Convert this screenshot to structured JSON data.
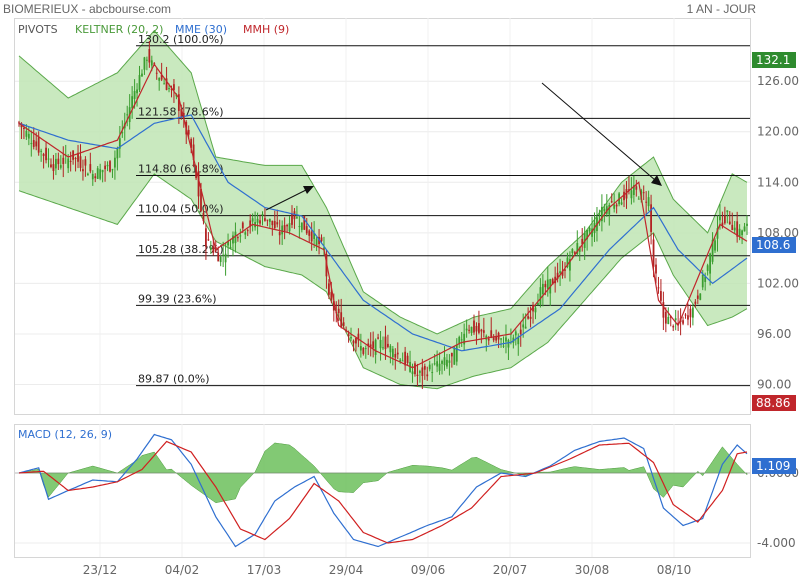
{
  "header": {
    "title": "BIOMERIEUX - abcbourse.com",
    "period": "1 AN - JOUR"
  },
  "legend": {
    "pivots": "PIVOTS",
    "keltner": "KELTNER (20, 2)",
    "mme": "MME (30)",
    "mmh": "MMH (9)",
    "macd": "MACD (12, 26, 9)"
  },
  "colors": {
    "keltner": "#5aa84a",
    "keltner_fill": "#bfe5b4",
    "mme": "#2f6fd0",
    "mmh": "#c0262b",
    "up": "#3a9d2f",
    "down": "#b22222",
    "macd_line": "#2f6fd0",
    "signal_line": "#d02020",
    "histogram": "#6cbf5c",
    "badge_high": "#2e8b2e",
    "badge_price": "#2f6fd0",
    "badge_low": "#c0262b"
  },
  "chart_data": {
    "type": "candlestick",
    "x_ticks": [
      "23/12",
      "04/02",
      "17/03",
      "29/04",
      "09/06",
      "20/07",
      "30/08",
      "08/10"
    ],
    "y_ticks": [
      90,
      96,
      102,
      108,
      114,
      120,
      126
    ],
    "y_tick_labels": [
      "90.00",
      "96.00",
      "102.00",
      "108.00",
      "114.00",
      "120.00",
      "126.00"
    ],
    "ylim": [
      86.5,
      133.5
    ],
    "fibonacci": [
      {
        "value": 130.2,
        "label": "130.2",
        "pct": "(100.0%)"
      },
      {
        "value": 121.58,
        "label": "121.58",
        "pct": "(78.6%)"
      },
      {
        "value": 114.8,
        "label": "114.80",
        "pct": "(61.8%)"
      },
      {
        "value": 110.04,
        "label": "110.04",
        "pct": "(50.0%)"
      },
      {
        "value": 105.28,
        "label": "105.28",
        "pct": "(38.2%)"
      },
      {
        "value": 99.39,
        "label": "99.39",
        "pct": "(23.6%)"
      },
      {
        "value": 89.87,
        "label": "89.87",
        "pct": "(0.0%)"
      }
    ],
    "badges": {
      "high": {
        "value": 132.1,
        "label": "132.1"
      },
      "price": {
        "value": 108.6,
        "label": "108.6"
      },
      "low": {
        "value": 88.86,
        "label": "88.86"
      }
    },
    "close_anchors": [
      [
        0,
        121
      ],
      [
        8,
        118
      ],
      [
        14,
        116
      ],
      [
        22,
        117
      ],
      [
        30,
        115
      ],
      [
        38,
        116
      ],
      [
        46,
        124
      ],
      [
        52,
        129
      ],
      [
        56,
        127
      ],
      [
        64,
        124
      ],
      [
        70,
        118
      ],
      [
        76,
        107
      ],
      [
        82,
        105
      ],
      [
        88,
        108
      ],
      [
        94,
        109
      ],
      [
        100,
        110
      ],
      [
        106,
        108
      ],
      [
        112,
        110
      ],
      [
        118,
        108
      ],
      [
        124,
        106
      ],
      [
        126,
        100
      ],
      [
        132,
        97
      ],
      [
        140,
        94
      ],
      [
        148,
        95
      ],
      [
        156,
        93
      ],
      [
        162,
        91
      ],
      [
        168,
        92
      ],
      [
        176,
        93
      ],
      [
        182,
        97
      ],
      [
        188,
        96
      ],
      [
        196,
        95
      ],
      [
        204,
        96
      ],
      [
        212,
        101
      ],
      [
        220,
        103
      ],
      [
        226,
        106
      ],
      [
        232,
        108
      ],
      [
        238,
        111
      ],
      [
        244,
        112
      ],
      [
        250,
        113
      ],
      [
        256,
        112
      ],
      [
        258,
        104
      ],
      [
        262,
        98
      ],
      [
        268,
        97
      ],
      [
        274,
        99
      ],
      [
        280,
        104
      ],
      [
        284,
        109
      ],
      [
        288,
        110
      ],
      [
        292,
        108
      ],
      [
        296,
        108.6
      ]
    ],
    "keltner_upper_anchors": [
      [
        0,
        129
      ],
      [
        20,
        124
      ],
      [
        40,
        127
      ],
      [
        55,
        132
      ],
      [
        70,
        127
      ],
      [
        80,
        117
      ],
      [
        100,
        116
      ],
      [
        115,
        116
      ],
      [
        125,
        111
      ],
      [
        140,
        101
      ],
      [
        155,
        98
      ],
      [
        170,
        96
      ],
      [
        185,
        98
      ],
      [
        200,
        99
      ],
      [
        215,
        104
      ],
      [
        230,
        108
      ],
      [
        245,
        114
      ],
      [
        258,
        117
      ],
      [
        266,
        112
      ],
      [
        280,
        108
      ],
      [
        290,
        115
      ],
      [
        296,
        114
      ]
    ],
    "keltner_lower_anchors": [
      [
        0,
        113
      ],
      [
        20,
        111
      ],
      [
        40,
        109
      ],
      [
        55,
        115
      ],
      [
        70,
        112
      ],
      [
        80,
        107
      ],
      [
        100,
        104
      ],
      [
        115,
        103
      ],
      [
        125,
        101
      ],
      [
        140,
        92
      ],
      [
        155,
        90
      ],
      [
        170,
        89.5
      ],
      [
        185,
        91
      ],
      [
        200,
        92
      ],
      [
        215,
        95
      ],
      [
        230,
        100
      ],
      [
        245,
        105
      ],
      [
        258,
        108
      ],
      [
        266,
        103
      ],
      [
        280,
        97
      ],
      [
        290,
        98
      ],
      [
        296,
        99
      ]
    ],
    "mme_anchors": [
      [
        0,
        121
      ],
      [
        20,
        119
      ],
      [
        40,
        118
      ],
      [
        55,
        121
      ],
      [
        70,
        122
      ],
      [
        85,
        114
      ],
      [
        100,
        111
      ],
      [
        115,
        110
      ],
      [
        125,
        106
      ],
      [
        140,
        100
      ],
      [
        160,
        96
      ],
      [
        180,
        94
      ],
      [
        200,
        95
      ],
      [
        220,
        99
      ],
      [
        240,
        106
      ],
      [
        258,
        111
      ],
      [
        268,
        106
      ],
      [
        282,
        102
      ],
      [
        296,
        105
      ]
    ],
    "mmh_anchors": [
      [
        0,
        121
      ],
      [
        20,
        117
      ],
      [
        40,
        119
      ],
      [
        55,
        128
      ],
      [
        65,
        124
      ],
      [
        80,
        106
      ],
      [
        95,
        109
      ],
      [
        110,
        108
      ],
      [
        124,
        106
      ],
      [
        130,
        97
      ],
      [
        145,
        94
      ],
      [
        160,
        92
      ],
      [
        180,
        95
      ],
      [
        200,
        96
      ],
      [
        220,
        103
      ],
      [
        240,
        111
      ],
      [
        252,
        114
      ],
      [
        260,
        100
      ],
      [
        268,
        97
      ],
      [
        285,
        109
      ],
      [
        296,
        107
      ]
    ],
    "macd": {
      "ylim": [
        -4.8,
        2.8
      ],
      "y_ticks": [
        0,
        -4
      ],
      "y_tick_labels": [
        "0.0000",
        "-4.000"
      ],
      "current_label": "1.109",
      "line_anchors": [
        [
          0,
          0
        ],
        [
          8,
          0.3
        ],
        [
          12,
          -1.5
        ],
        [
          20,
          -1
        ],
        [
          30,
          -0.4
        ],
        [
          40,
          -0.5
        ],
        [
          48,
          0.8
        ],
        [
          55,
          2.2
        ],
        [
          62,
          1.9
        ],
        [
          70,
          0.5
        ],
        [
          80,
          -2.5
        ],
        [
          88,
          -4.2
        ],
        [
          96,
          -3.5
        ],
        [
          104,
          -1.6
        ],
        [
          112,
          -0.8
        ],
        [
          120,
          -0.2
        ],
        [
          128,
          -2.3
        ],
        [
          136,
          -3.8
        ],
        [
          146,
          -4.2
        ],
        [
          156,
          -3.6
        ],
        [
          166,
          -3.0
        ],
        [
          176,
          -2.5
        ],
        [
          186,
          -0.8
        ],
        [
          196,
          0
        ],
        [
          206,
          -0.2
        ],
        [
          216,
          0.4
        ],
        [
          226,
          1.3
        ],
        [
          236,
          1.8
        ],
        [
          246,
          2.0
        ],
        [
          254,
          1.4
        ],
        [
          262,
          -2.0
        ],
        [
          270,
          -3.0
        ],
        [
          278,
          -2.6
        ],
        [
          286,
          0.5
        ],
        [
          292,
          1.6
        ],
        [
          296,
          1.1
        ]
      ],
      "signal_anchors": [
        [
          0,
          0
        ],
        [
          10,
          0.1
        ],
        [
          20,
          -1.0
        ],
        [
          30,
          -0.8
        ],
        [
          40,
          -0.5
        ],
        [
          50,
          0.2
        ],
        [
          60,
          1.8
        ],
        [
          70,
          1.2
        ],
        [
          80,
          -0.8
        ],
        [
          90,
          -3.2
        ],
        [
          100,
          -3.8
        ],
        [
          110,
          -2.6
        ],
        [
          120,
          -0.6
        ],
        [
          130,
          -1.6
        ],
        [
          140,
          -3.4
        ],
        [
          150,
          -4.0
        ],
        [
          160,
          -3.8
        ],
        [
          172,
          -3.0
        ],
        [
          184,
          -2.0
        ],
        [
          196,
          -0.2
        ],
        [
          210,
          0
        ],
        [
          224,
          0.8
        ],
        [
          236,
          1.6
        ],
        [
          248,
          1.7
        ],
        [
          258,
          0.6
        ],
        [
          266,
          -1.8
        ],
        [
          276,
          -2.8
        ],
        [
          286,
          -1.0
        ],
        [
          292,
          1.1
        ],
        [
          296,
          1.2
        ]
      ]
    }
  }
}
